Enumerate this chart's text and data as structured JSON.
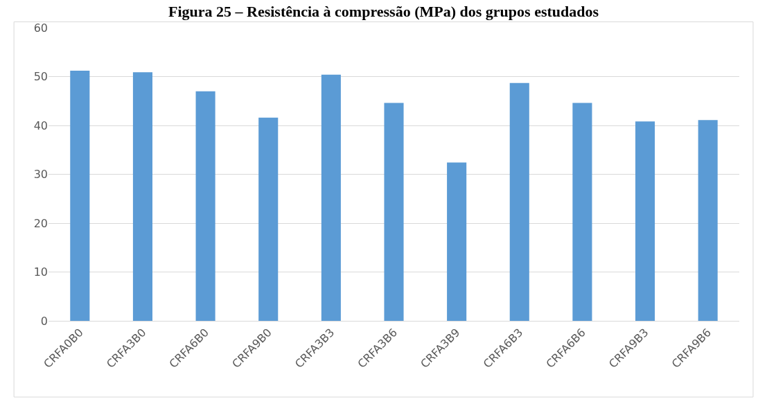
{
  "chart_data": {
    "type": "bar",
    "title": "Figura 25 – Resistência à compressão (MPa) dos grupos estudados",
    "categories": [
      "CRFA0B0",
      "CRFA3B0",
      "CRFA6B0",
      "CRFA9B0",
      "CRFA3B3",
      "CRFA3B6",
      "CRFA3B9",
      "CRFA6B3",
      "CRFA6B6",
      "CRFA9B3",
      "CRFA9B6"
    ],
    "values": [
      51.2,
      50.9,
      47.0,
      41.6,
      50.4,
      44.6,
      32.4,
      48.7,
      44.6,
      40.8,
      41.1
    ],
    "color": "#5b9bd5",
    "ylim": [
      0,
      60
    ],
    "yticks": [
      0,
      10,
      20,
      30,
      40,
      50,
      60
    ],
    "grid": "y"
  }
}
